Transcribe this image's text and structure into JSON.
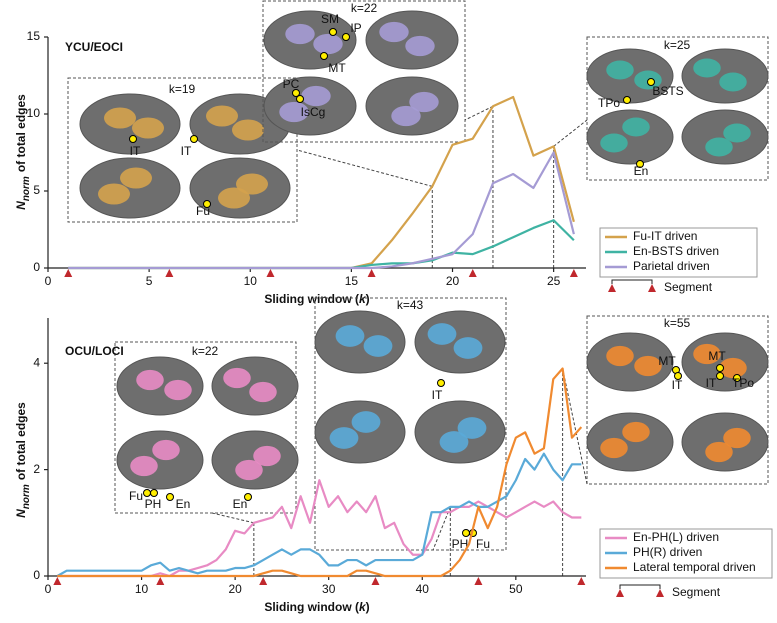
{
  "chart_data": [
    {
      "type": "line",
      "title": "YCU/EOCI",
      "xlabel": [
        "Sliding window (",
        "k",
        ")"
      ],
      "ylabel": {
        "symbol": "N",
        "subscript": "norm",
        "text": "of total edges"
      },
      "x": [
        1,
        2,
        3,
        4,
        5,
        6,
        7,
        8,
        9,
        10,
        11,
        12,
        13,
        14,
        15,
        16,
        17,
        18,
        19,
        20,
        21,
        22,
        23,
        24,
        25,
        26
      ],
      "xlim": [
        0,
        26.6
      ],
      "xticks": [
        0,
        5,
        10,
        15,
        20,
        25
      ],
      "ylim": [
        0,
        15
      ],
      "yticks": [
        0,
        5,
        10,
        15
      ],
      "series": [
        {
          "name": "Fu-IT driven",
          "color": "#d4a24c",
          "values": [
            0,
            0,
            0,
            0,
            0,
            0,
            0,
            0,
            0,
            0,
            0,
            0,
            0,
            0,
            0,
            0.3,
            1.8,
            3.5,
            5.3,
            8.0,
            8.4,
            10.5,
            11.1,
            7.3,
            7.9,
            3.0
          ]
        },
        {
          "name": "En-BSTS driven",
          "color": "#3fb3a3",
          "values": [
            0,
            0,
            0,
            0,
            0,
            0,
            0,
            0,
            0,
            0,
            0,
            0,
            0,
            0,
            0,
            0.2,
            0.3,
            0.3,
            0.5,
            1.0,
            0.9,
            1.4,
            2.0,
            2.6,
            3.1,
            1.8
          ]
        },
        {
          "name": "Parietal driven",
          "color": "#a59bd4",
          "values": [
            0,
            0,
            0,
            0,
            0,
            0,
            0,
            0,
            0,
            0,
            0,
            0,
            0,
            0,
            0,
            0,
            0.1,
            0.3,
            0.6,
            0.9,
            2.2,
            5.5,
            6.1,
            5.2,
            7.5,
            2.2
          ]
        }
      ],
      "segments": [
        1,
        6,
        11,
        16,
        21,
        26
      ],
      "segment_label": "Segment",
      "insets": [
        {
          "label": "k=19",
          "k": 19,
          "regions": [
            "IT",
            "IT",
            "Fu"
          ]
        },
        {
          "label": "k=22",
          "k": 22,
          "regions": [
            "SM",
            "IP",
            "MT",
            "PC",
            "IsCg"
          ]
        },
        {
          "label": "k=25",
          "k": 25,
          "regions": [
            "BSTS",
            "TPo",
            "En"
          ]
        }
      ]
    },
    {
      "type": "line",
      "title": "OCU/LOCI",
      "xlabel": [
        "Sliding window (",
        "k",
        ")"
      ],
      "ylabel": {
        "symbol": "N",
        "subscript": "norm",
        "text": "of total edges"
      },
      "x": [
        1,
        2,
        3,
        4,
        5,
        6,
        7,
        8,
        9,
        10,
        11,
        12,
        13,
        14,
        15,
        16,
        17,
        18,
        19,
        20,
        21,
        22,
        23,
        24,
        25,
        26,
        27,
        28,
        29,
        30,
        31,
        32,
        33,
        34,
        35,
        36,
        37,
        38,
        39,
        40,
        41,
        42,
        43,
        44,
        45,
        46,
        47,
        48,
        49,
        50,
        51,
        52,
        53,
        54,
        55,
        56,
        57
      ],
      "xlim": [
        0,
        57.5
      ],
      "xticks": [
        0,
        10,
        20,
        30,
        40,
        50
      ],
      "ylim": [
        0,
        4.85
      ],
      "yticks": [
        0,
        2,
        4
      ],
      "series": [
        {
          "name": "En-PH(L) driven",
          "color": "#e88bc4",
          "values": [
            0,
            0,
            0,
            0,
            0,
            0,
            0,
            0,
            0,
            0,
            0,
            0.05,
            0,
            0.1,
            0.1,
            0.15,
            0.2,
            0.3,
            0.5,
            0.85,
            0.8,
            1.0,
            1.05,
            1.1,
            1.3,
            0.9,
            1.5,
            1.0,
            1.8,
            1.3,
            1.5,
            1.2,
            1.4,
            1.2,
            1.5,
            0.9,
            1.0,
            0.6,
            0.4,
            0.4,
            0.7,
            1.2,
            1.2,
            1.3,
            1.3,
            1.4,
            1.3,
            1.2,
            1.1,
            1.2,
            1.3,
            1.4,
            1.3,
            1.4,
            1.2,
            1.1,
            1.1
          ]
        },
        {
          "name": "PH(R) driven",
          "color": "#5aaad8",
          "values": [
            0,
            0.1,
            0.1,
            0.1,
            0.1,
            0.1,
            0.1,
            0.1,
            0.1,
            0.1,
            0.2,
            0.25,
            0.1,
            0.15,
            0.1,
            0.05,
            0.1,
            0.1,
            0.1,
            0.15,
            0.15,
            0.2,
            0.3,
            0.4,
            0.5,
            0.4,
            0.5,
            0.5,
            0.4,
            0.2,
            0.2,
            0.3,
            0.3,
            0.2,
            0.3,
            0.3,
            0.3,
            0.3,
            0.3,
            0.4,
            1.2,
            1.2,
            1.3,
            1.3,
            1.4,
            1.3,
            1.3,
            1.4,
            1.5,
            1.8,
            2.2,
            2.0,
            2.3,
            2.0,
            1.8,
            2.1,
            2.1
          ]
        },
        {
          "name": "Lateral temporal driven",
          "color": "#f08a30",
          "values": [
            0,
            0,
            0,
            0,
            0,
            0,
            0,
            0,
            0,
            0,
            0,
            0,
            0,
            0,
            0,
            0,
            0,
            0,
            0,
            0,
            0,
            0,
            0.05,
            0.1,
            0.1,
            0.05,
            0,
            0,
            0,
            0,
            0,
            0,
            0.1,
            0.1,
            0.05,
            0,
            0,
            0,
            0,
            0,
            0,
            0,
            0.1,
            0.3,
            0.6,
            1.3,
            0.9,
            1.3,
            2.1,
            2.6,
            2.7,
            2.3,
            2.4,
            3.7,
            3.9,
            2.6,
            2.8
          ]
        }
      ],
      "segments": [
        1,
        12,
        23,
        35,
        46,
        57
      ],
      "segment_label": "Segment",
      "insets": [
        {
          "label": "k=22",
          "k": 22,
          "regions": [
            "Fu",
            "PH",
            "En",
            "En"
          ]
        },
        {
          "label": "k=43",
          "k": 43,
          "regions": [
            "IT",
            "PH",
            "Fu"
          ]
        },
        {
          "label": "k=55",
          "k": 55,
          "regions": [
            "MT",
            "IT",
            "MT",
            "IT",
            "TPo"
          ]
        }
      ]
    }
  ]
}
